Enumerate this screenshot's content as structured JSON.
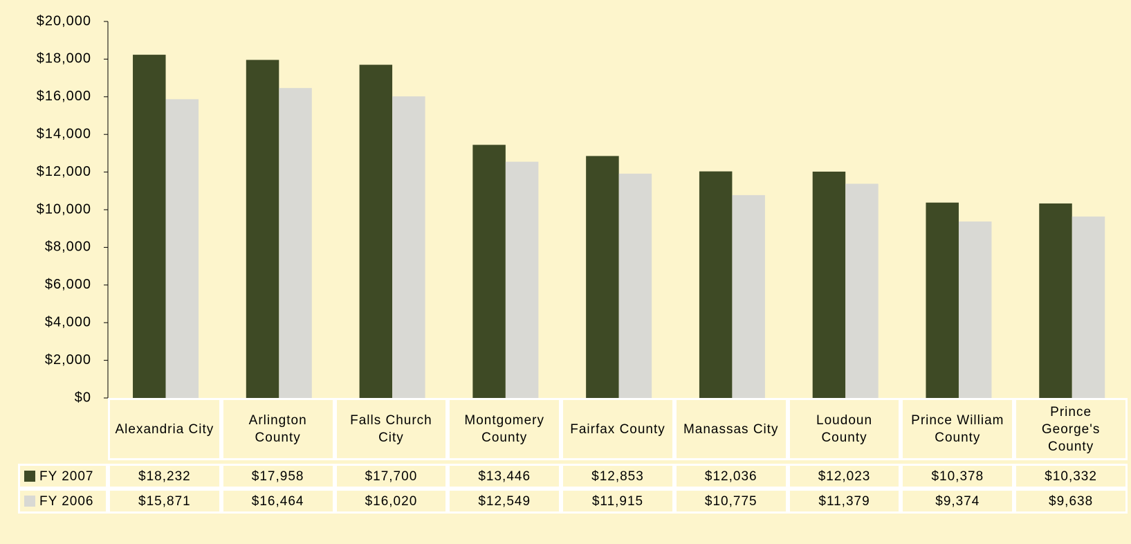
{
  "chart_data": {
    "type": "bar",
    "categories": [
      "Alexandria City",
      "Arlington County",
      "Falls Church City",
      "Montgomery County",
      "Fairfax County",
      "Manassas City",
      "Loudoun County",
      "Prince William County",
      "Prince George's County"
    ],
    "series": [
      {
        "name": "FY 2007",
        "color": "#3e4a25",
        "values": [
          18232,
          17958,
          17700,
          13446,
          12853,
          12036,
          12023,
          10378,
          10332
        ],
        "value_labels": [
          "$18,232",
          "$17,958",
          "$17,700",
          "$13,446",
          "$12,853",
          "$12,036",
          "$12,023",
          "$10,378",
          "$10,332"
        ]
      },
      {
        "name": "FY 2006",
        "color": "#d9d9d4",
        "values": [
          15871,
          16464,
          16020,
          12549,
          11915,
          10775,
          11379,
          9374,
          9638
        ],
        "value_labels": [
          "$15,871",
          "$16,464",
          "$16,020",
          "$12,549",
          "$11,915",
          "$10,775",
          "$11,379",
          "$9,374",
          "$9,638"
        ]
      }
    ],
    "ylim": [
      0,
      20000
    ],
    "yticks": [
      {
        "value": 0,
        "label": "$0"
      },
      {
        "value": 2000,
        "label": "$2,000"
      },
      {
        "value": 4000,
        "label": "$4,000"
      },
      {
        "value": 6000,
        "label": "$6,000"
      },
      {
        "value": 8000,
        "label": "$8,000"
      },
      {
        "value": 10000,
        "label": "$10,000"
      },
      {
        "value": 12000,
        "label": "$12,000"
      },
      {
        "value": 14000,
        "label": "$14,000"
      },
      {
        "value": 16000,
        "label": "$16,000"
      },
      {
        "value": 18000,
        "label": "$18,000"
      },
      {
        "value": 20000,
        "label": "$20,000"
      }
    ]
  }
}
